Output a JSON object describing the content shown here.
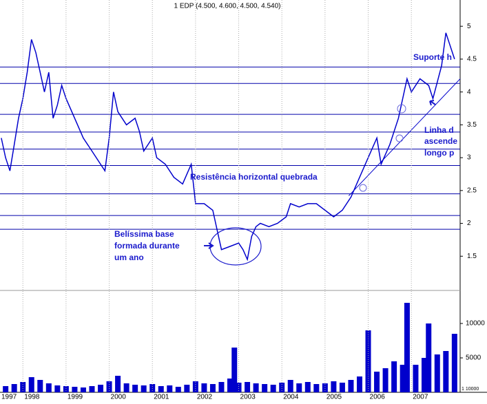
{
  "chart_data": {
    "type": "line",
    "title": "1 EDP (4.500, 4.600, 4.500, 4.540)",
    "color": "#0000cc",
    "x": [
      1997.5,
      1997.6,
      1997.7,
      1997.8,
      1997.9,
      1998.0,
      1998.1,
      1998.2,
      1998.3,
      1998.4,
      1998.5,
      1998.6,
      1998.7,
      1998.8,
      1998.9,
      1999.0,
      1999.2,
      1999.4,
      1999.6,
      1999.8,
      1999.9,
      2000.0,
      2000.1,
      2000.2,
      2000.4,
      2000.6,
      2000.7,
      2000.8,
      2001.0,
      2001.1,
      2001.3,
      2001.5,
      2001.7,
      2001.9,
      2002.0,
      2002.2,
      2002.4,
      2002.5,
      2002.6,
      2002.8,
      2003.0,
      2003.1,
      2003.2,
      2003.3,
      2003.4,
      2003.5,
      2003.7,
      2003.9,
      2004.1,
      2004.2,
      2004.4,
      2004.6,
      2004.8,
      2005.0,
      2005.2,
      2005.4,
      2005.6,
      2005.8,
      2006.0,
      2006.2,
      2006.3,
      2006.5,
      2006.7,
      2006.9,
      2007.0,
      2007.2,
      2007.4,
      2007.5,
      2007.7,
      2007.8,
      2008.0
    ],
    "values": [
      3.3,
      3.0,
      2.8,
      3.2,
      3.6,
      3.9,
      4.3,
      4.8,
      4.6,
      4.3,
      4.0,
      4.3,
      3.6,
      3.8,
      4.1,
      3.9,
      3.6,
      3.3,
      3.1,
      2.9,
      2.8,
      3.3,
      4.0,
      3.7,
      3.5,
      3.6,
      3.4,
      3.1,
      3.3,
      3.0,
      2.9,
      2.7,
      2.6,
      2.9,
      2.3,
      2.3,
      2.2,
      1.9,
      1.6,
      1.65,
      1.7,
      1.6,
      1.45,
      1.8,
      1.95,
      2.0,
      1.95,
      2.0,
      2.1,
      2.3,
      2.25,
      2.3,
      2.3,
      2.2,
      2.1,
      2.2,
      2.4,
      2.7,
      3.0,
      3.3,
      2.9,
      3.2,
      3.6,
      4.2,
      4.0,
      4.2,
      4.1,
      3.9,
      4.4,
      4.9,
      4.5
    ],
    "xlim": [
      1997.47,
      2008.13
    ],
    "xticks": [
      1997,
      1998,
      1999,
      2000,
      2001,
      2002,
      2003,
      2004,
      2005,
      2006,
      2007
    ],
    "ylim": [
      1.0,
      5.4
    ],
    "yticks": [
      1.5,
      2.0,
      2.5,
      3.0,
      3.5,
      4.0,
      4.5,
      5.0
    ],
    "levels": [
      4.38,
      4.13,
      3.66,
      3.39,
      3.13,
      2.88,
      2.45,
      2.12,
      1.91
    ],
    "trendline": {
      "x": [
        2005.55,
        2008.13
      ],
      "y": [
        2.42,
        4.2
      ]
    },
    "volume": {
      "color": "#0000cc",
      "x": [
        1997.6,
        1997.8,
        1998.0,
        1998.2,
        1998.4,
        1998.6,
        1998.8,
        1999.0,
        1999.2,
        1999.4,
        1999.6,
        1999.8,
        2000.0,
        2000.2,
        2000.4,
        2000.6,
        2000.8,
        2001.0,
        2001.2,
        2001.4,
        2001.6,
        2001.8,
        2002.0,
        2002.2,
        2002.4,
        2002.6,
        2002.8,
        2002.9,
        2003.0,
        2003.2,
        2003.4,
        2003.6,
        2003.8,
        2004.0,
        2004.2,
        2004.4,
        2004.6,
        2004.8,
        2005.0,
        2005.2,
        2005.4,
        2005.6,
        2005.8,
        2006.0,
        2006.2,
        2006.4,
        2006.6,
        2006.8,
        2006.9,
        2007.1,
        2007.3,
        2007.4,
        2007.6,
        2007.8,
        2008.0
      ],
      "values": [
        900,
        1200,
        1500,
        2200,
        1800,
        1300,
        1000,
        900,
        800,
        700,
        900,
        1100,
        1600,
        2400,
        1300,
        1100,
        1000,
        1200,
        900,
        1000,
        800,
        1100,
        1600,
        1300,
        1200,
        1500,
        2000,
        6500,
        1400,
        1500,
        1300,
        1200,
        1100,
        1400,
        1800,
        1300,
        1500,
        1200,
        1300,
        1600,
        1400,
        1800,
        2300,
        9000,
        3000,
        3500,
        4500,
        4000,
        13000,
        4000,
        5000,
        10000,
        5500,
        6000,
        8500
      ],
      "ylim": [
        0,
        14800
      ],
      "yticks": [
        5000,
        10000
      ],
      "scale_label": "1 10000"
    },
    "annotations": [
      "Resistência horizontal quebrada",
      "Belíssima base",
      "formada durante",
      "um ano",
      "Suporte h",
      "Linha d",
      "ascende",
      "longo p"
    ]
  }
}
